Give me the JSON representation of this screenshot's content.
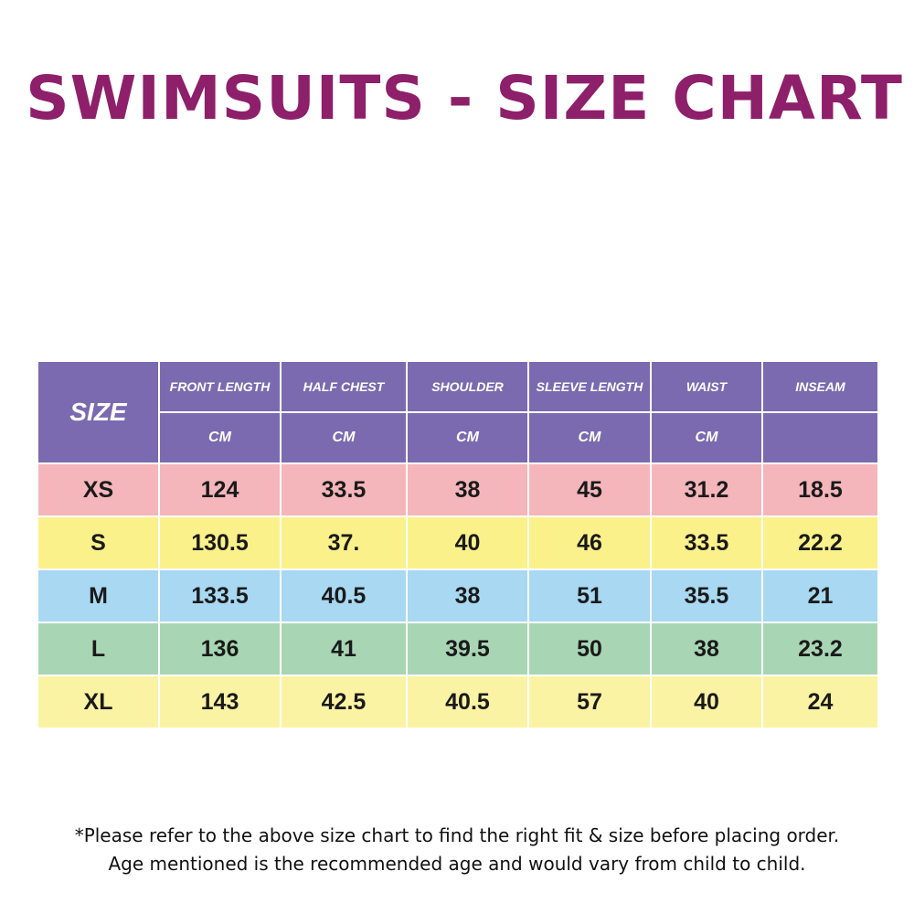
{
  "title": "SWIMSUITS - SIZE CHART",
  "table": {
    "size_header": "SIZE",
    "columns": [
      {
        "label": "FRONT LENGTH",
        "unit": "CM"
      },
      {
        "label": "HALF CHEST",
        "unit": "CM"
      },
      {
        "label": "SHOULDER",
        "unit": "CM"
      },
      {
        "label": "SLEEVE LENGTH",
        "unit": "CM"
      },
      {
        "label": "WAIST",
        "unit": "CM"
      },
      {
        "label": "INSEAM",
        "unit": ""
      }
    ],
    "rows": [
      {
        "size": "XS",
        "values": [
          "124",
          "33.5",
          "38",
          "45",
          "31.2",
          "18.5"
        ],
        "color": "#f4b6bb"
      },
      {
        "size": "S",
        "values": [
          "130.5",
          "37.",
          "40",
          "46",
          "33.5",
          "22.2"
        ],
        "color": "#fbf18a"
      },
      {
        "size": "M",
        "values": [
          "133.5",
          "40.5",
          "38",
          "51",
          "35.5",
          "21"
        ],
        "color": "#a8d8f2"
      },
      {
        "size": "L",
        "values": [
          "136",
          "41",
          "39.5",
          "50",
          "38",
          "23.2"
        ],
        "color": "#a8d6b4"
      },
      {
        "size": "XL",
        "values": [
          "143",
          "42.5",
          "40.5",
          "57",
          "40",
          "24"
        ],
        "color": "#fbf3a4"
      }
    ],
    "header_color": "#7b6aaf"
  },
  "notes": {
    "line1": "*Please refer to the above size chart to find the right fit & size before placing order.",
    "line2": "Age mentioned is the recommended age and would vary from child to child."
  }
}
